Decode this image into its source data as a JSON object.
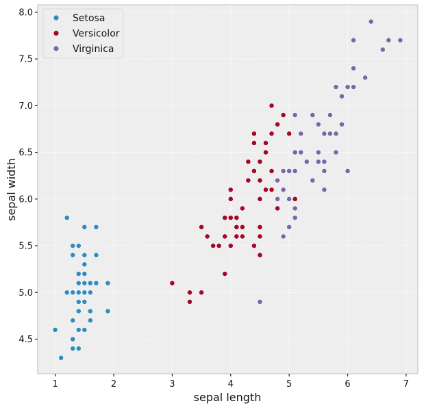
{
  "chart_data": {
    "type": "scatter",
    "title": "",
    "xlabel": "sepal length",
    "ylabel": "sepal width",
    "xlim": [
      0.7,
      7.2
    ],
    "ylim": [
      4.13,
      8.08
    ],
    "xticks": [
      "1",
      "2",
      "3",
      "4",
      "5",
      "6",
      "7"
    ],
    "yticks": [
      "4.5",
      "5.0",
      "5.5",
      "6.0",
      "6.5",
      "7.0",
      "7.5",
      "8.0"
    ],
    "grid": true,
    "legend_position": "top-left",
    "series": [
      {
        "name": "Setosa",
        "color": "#348ABD",
        "points": [
          [
            1.4,
            5.1
          ],
          [
            1.4,
            4.9
          ],
          [
            1.3,
            4.7
          ],
          [
            1.5,
            4.6
          ],
          [
            1.4,
            5.0
          ],
          [
            1.7,
            5.4
          ],
          [
            1.4,
            4.6
          ],
          [
            1.5,
            5.0
          ],
          [
            1.4,
            4.4
          ],
          [
            1.5,
            4.9
          ],
          [
            1.5,
            5.4
          ],
          [
            1.6,
            4.8
          ],
          [
            1.4,
            4.8
          ],
          [
            1.1,
            4.3
          ],
          [
            1.2,
            5.8
          ],
          [
            1.5,
            5.7
          ],
          [
            1.3,
            5.4
          ],
          [
            1.4,
            5.1
          ],
          [
            1.7,
            5.7
          ],
          [
            1.5,
            5.1
          ],
          [
            1.7,
            5.4
          ],
          [
            1.5,
            5.1
          ],
          [
            1.0,
            4.6
          ],
          [
            1.7,
            5.1
          ],
          [
            1.9,
            4.8
          ],
          [
            1.6,
            5.0
          ],
          [
            1.6,
            5.0
          ],
          [
            1.5,
            5.2
          ],
          [
            1.4,
            5.2
          ],
          [
            1.6,
            4.7
          ],
          [
            1.6,
            4.8
          ],
          [
            1.5,
            5.4
          ],
          [
            1.5,
            5.2
          ],
          [
            1.4,
            5.5
          ],
          [
            1.5,
            4.9
          ],
          [
            1.2,
            5.0
          ],
          [
            1.3,
            5.5
          ],
          [
            1.4,
            4.9
          ],
          [
            1.3,
            4.4
          ],
          [
            1.5,
            5.1
          ],
          [
            1.3,
            5.0
          ],
          [
            1.3,
            4.5
          ],
          [
            1.3,
            4.4
          ],
          [
            1.6,
            5.0
          ],
          [
            1.9,
            5.1
          ],
          [
            1.4,
            4.8
          ],
          [
            1.6,
            5.1
          ],
          [
            1.4,
            4.6
          ],
          [
            1.5,
            5.3
          ],
          [
            1.4,
            5.0
          ]
        ]
      },
      {
        "name": "Versicolor",
        "color": "#A60628",
        "points": [
          [
            4.7,
            7.0
          ],
          [
            4.5,
            6.4
          ],
          [
            4.9,
            6.9
          ],
          [
            4.0,
            5.5
          ],
          [
            4.6,
            6.5
          ],
          [
            4.5,
            5.7
          ],
          [
            4.7,
            6.3
          ],
          [
            3.3,
            4.9
          ],
          [
            4.6,
            6.6
          ],
          [
            3.9,
            5.2
          ],
          [
            3.5,
            5.0
          ],
          [
            4.2,
            5.9
          ],
          [
            4.0,
            6.0
          ],
          [
            4.7,
            6.1
          ],
          [
            3.6,
            5.6
          ],
          [
            4.4,
            6.7
          ],
          [
            4.5,
            5.6
          ],
          [
            4.1,
            5.8
          ],
          [
            4.5,
            6.2
          ],
          [
            3.9,
            5.6
          ],
          [
            4.8,
            5.9
          ],
          [
            4.0,
            6.1
          ],
          [
            4.9,
            6.3
          ],
          [
            4.7,
            6.1
          ],
          [
            4.3,
            6.4
          ],
          [
            4.4,
            6.6
          ],
          [
            4.8,
            6.8
          ],
          [
            5.0,
            6.7
          ],
          [
            4.5,
            6.0
          ],
          [
            3.5,
            5.7
          ],
          [
            3.8,
            5.5
          ],
          [
            3.7,
            5.5
          ],
          [
            3.9,
            5.8
          ],
          [
            5.1,
            6.0
          ],
          [
            4.5,
            5.4
          ],
          [
            4.5,
            6.0
          ],
          [
            4.7,
            6.7
          ],
          [
            4.4,
            6.3
          ],
          [
            4.1,
            5.6
          ],
          [
            4.0,
            5.5
          ],
          [
            4.4,
            5.5
          ],
          [
            4.6,
            6.1
          ],
          [
            4.0,
            5.8
          ],
          [
            3.3,
            5.0
          ],
          [
            4.2,
            5.6
          ],
          [
            4.2,
            5.7
          ],
          [
            4.2,
            5.7
          ],
          [
            4.3,
            6.2
          ],
          [
            3.0,
            5.1
          ],
          [
            4.1,
            5.7
          ]
        ]
      },
      {
        "name": "Virginica",
        "color": "#7A68A6",
        "points": [
          [
            6.0,
            6.3
          ],
          [
            5.1,
            5.8
          ],
          [
            5.9,
            7.1
          ],
          [
            5.6,
            6.3
          ],
          [
            5.8,
            6.5
          ],
          [
            6.6,
            7.6
          ],
          [
            4.5,
            4.9
          ],
          [
            6.3,
            7.3
          ],
          [
            5.8,
            6.7
          ],
          [
            6.1,
            7.2
          ],
          [
            5.1,
            6.5
          ],
          [
            5.3,
            6.4
          ],
          [
            5.5,
            6.8
          ],
          [
            5.0,
            5.7
          ],
          [
            5.1,
            5.8
          ],
          [
            5.3,
            6.4
          ],
          [
            5.5,
            6.5
          ],
          [
            6.7,
            7.7
          ],
          [
            6.9,
            7.7
          ],
          [
            5.0,
            6.0
          ],
          [
            5.7,
            6.9
          ],
          [
            4.9,
            5.6
          ],
          [
            6.7,
            7.7
          ],
          [
            4.9,
            6.3
          ],
          [
            5.7,
            6.7
          ],
          [
            6.0,
            7.2
          ],
          [
            4.8,
            6.2
          ],
          [
            4.9,
            6.1
          ],
          [
            5.6,
            6.4
          ],
          [
            5.8,
            7.2
          ],
          [
            6.1,
            7.4
          ],
          [
            6.4,
            7.9
          ],
          [
            5.6,
            6.4
          ],
          [
            5.1,
            6.3
          ],
          [
            5.6,
            6.1
          ],
          [
            6.1,
            7.7
          ],
          [
            5.6,
            6.3
          ],
          [
            5.5,
            6.4
          ],
          [
            4.8,
            6.0
          ],
          [
            5.4,
            6.9
          ],
          [
            5.6,
            6.7
          ],
          [
            5.1,
            6.9
          ],
          [
            5.1,
            5.8
          ],
          [
            5.9,
            6.8
          ],
          [
            5.7,
            6.7
          ],
          [
            5.2,
            6.7
          ],
          [
            5.0,
            6.3
          ],
          [
            5.2,
            6.5
          ],
          [
            5.4,
            6.2
          ],
          [
            5.1,
            5.9
          ]
        ]
      }
    ]
  }
}
